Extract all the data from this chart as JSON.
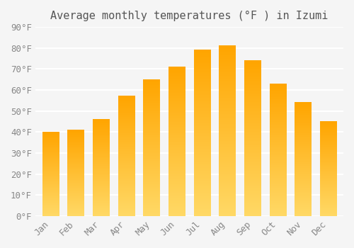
{
  "title": "Average monthly temperatures (°F ) in Izumi",
  "months": [
    "Jan",
    "Feb",
    "Mar",
    "Apr",
    "May",
    "Jun",
    "Jul",
    "Aug",
    "Sep",
    "Oct",
    "Nov",
    "Dec"
  ],
  "values": [
    40,
    41,
    46,
    57,
    65,
    71,
    79,
    81,
    74,
    63,
    54,
    45
  ],
  "bar_color_bottom": "#FFD966",
  "bar_color_top": "#FFA500",
  "ylim": [
    0,
    90
  ],
  "yticks": [
    0,
    10,
    20,
    30,
    40,
    50,
    60,
    70,
    80,
    90
  ],
  "ytick_labels": [
    "0°F",
    "10°F",
    "20°F",
    "30°F",
    "40°F",
    "50°F",
    "60°F",
    "70°F",
    "80°F",
    "90°F"
  ],
  "background_color": "#f5f5f5",
  "grid_color": "#ffffff",
  "title_fontsize": 11,
  "tick_fontsize": 9,
  "bar_width": 0.65
}
